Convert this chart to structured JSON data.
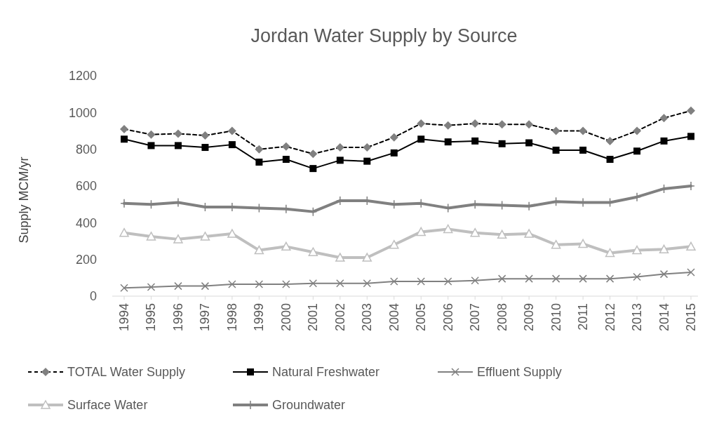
{
  "chart_data": {
    "type": "line",
    "title": "Jordan Water Supply by Source",
    "ylabel": "Supply MCM/yr",
    "categories": [
      "1994",
      "1995",
      "1996",
      "1997",
      "1998",
      "1999",
      "2000",
      "2001",
      "2002",
      "2003",
      "2004",
      "2005",
      "2006",
      "2007",
      "2008",
      "2009",
      "2010",
      "2011",
      "2012",
      "2013",
      "2014",
      "2015"
    ],
    "ylim": [
      0,
      1200
    ],
    "yticks": [
      0,
      200,
      400,
      600,
      800,
      1000,
      1200
    ],
    "grid": false,
    "legend": "bottom",
    "series": [
      {
        "name": "TOTAL Water Supply",
        "color": "#000000",
        "marker": "diamond",
        "line_style": "dashed",
        "values": [
          910,
          880,
          885,
          875,
          900,
          800,
          815,
          775,
          810,
          810,
          865,
          940,
          930,
          940,
          935,
          935,
          900,
          900,
          845,
          900,
          970,
          1010
        ]
      },
      {
        "name": "Natural Freshwater",
        "color": "#000000",
        "marker": "square",
        "line_style": "solid",
        "values": [
          855,
          820,
          820,
          810,
          825,
          730,
          745,
          695,
          740,
          735,
          780,
          855,
          840,
          845,
          830,
          835,
          795,
          795,
          745,
          790,
          845,
          870
        ]
      },
      {
        "name": "Effluent Supply",
        "color": "#808080",
        "marker": "cross",
        "line_style": "solid",
        "values": [
          45,
          50,
          55,
          55,
          65,
          65,
          65,
          70,
          70,
          70,
          80,
          80,
          80,
          85,
          95,
          95,
          95,
          95,
          95,
          105,
          120,
          130
        ]
      },
      {
        "name": "Surface Water",
        "color": "#bfbfbf",
        "marker": "triangle",
        "line_style": "solid",
        "values": [
          345,
          325,
          310,
          325,
          340,
          250,
          270,
          240,
          210,
          210,
          280,
          350,
          365,
          345,
          335,
          340,
          280,
          285,
          235,
          250,
          255,
          270
        ]
      },
      {
        "name": "Groundwater",
        "color": "#808080",
        "marker": "plus",
        "line_style": "solid",
        "values": [
          505,
          500,
          510,
          485,
          485,
          480,
          475,
          460,
          520,
          520,
          500,
          505,
          480,
          500,
          495,
          490,
          515,
          510,
          510,
          540,
          585,
          600
        ]
      }
    ]
  }
}
